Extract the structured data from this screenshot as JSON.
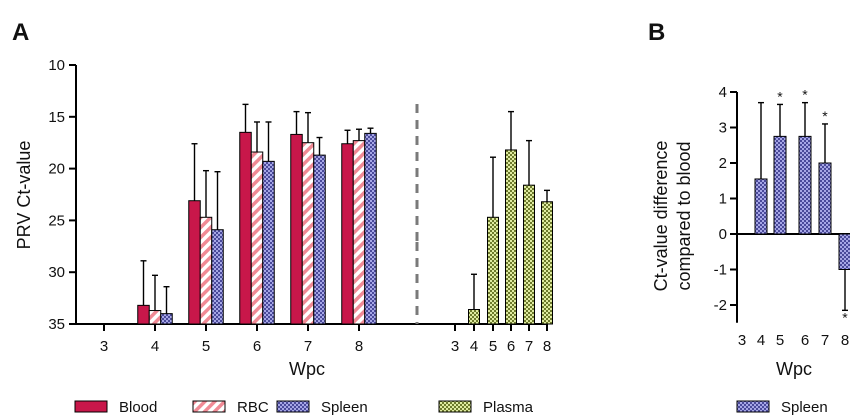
{
  "colors": {
    "blood": "#c8174a",
    "rbc_hatch": "#f08a95",
    "spleen_fill": "#a6a6e6",
    "spleen_check": "#4a4a9a",
    "plasma_fill": "#dfeba0",
    "plasma_check": "#6d7a2c",
    "axis": "#000000",
    "divider": "#7a7a7a"
  },
  "chart_data": [
    {
      "panel": "A",
      "type": "bar",
      "ylabel": "PRV Ct-value",
      "xlabel": "Wpc",
      "ylim": [
        35,
        10
      ],
      "yticks": [
        10,
        15,
        20,
        25,
        30,
        35
      ],
      "y_inverted": true,
      "groups": [
        {
          "label": "3",
          "bars": []
        },
        {
          "label": "4",
          "bars": [
            {
              "series": "Blood",
              "value": 33.2,
              "err": 4.3
            },
            {
              "series": "RBC",
              "value": 33.7,
              "err": 3.4
            },
            {
              "series": "Spleen",
              "value": 34.0,
              "err": 2.6
            }
          ]
        },
        {
          "label": "5",
          "bars": [
            {
              "series": "Blood",
              "value": 23.1,
              "err": 5.5
            },
            {
              "series": "RBC",
              "value": 24.7,
              "err": 4.5
            },
            {
              "series": "Spleen",
              "value": 25.9,
              "err": 5.6
            }
          ]
        },
        {
          "label": "6",
          "bars": [
            {
              "series": "Blood",
              "value": 16.5,
              "err": 2.7
            },
            {
              "series": "RBC",
              "value": 18.4,
              "err": 2.9
            },
            {
              "series": "Spleen",
              "value": 19.3,
              "err": 3.8
            }
          ]
        },
        {
          "label": "7",
          "bars": [
            {
              "series": "Blood",
              "value": 16.7,
              "err": 2.2
            },
            {
              "series": "RBC",
              "value": 17.5,
              "err": 2.9
            },
            {
              "series": "Spleen",
              "value": 18.7,
              "err": 1.7
            }
          ]
        },
        {
          "label": "8",
          "bars": [
            {
              "series": "Blood",
              "value": 17.6,
              "err": 1.3
            },
            {
              "series": "RBC",
              "value": 17.3,
              "err": 1.1
            },
            {
              "series": "Spleen",
              "value": 16.6,
              "err": 0.5
            }
          ]
        }
      ],
      "plasma_group": [
        {
          "label": "3",
          "value": null,
          "err": 0
        },
        {
          "label": "4",
          "value": 33.6,
          "err": 3.4
        },
        {
          "label": "5",
          "value": 24.7,
          "err": 5.8
        },
        {
          "label": "6",
          "value": 18.2,
          "err": 3.7
        },
        {
          "label": "7",
          "value": 21.6,
          "err": 4.3
        },
        {
          "label": "8",
          "value": 23.2,
          "err": 1.1
        }
      ],
      "legend": [
        "Blood",
        "RBC",
        "Spleen",
        "Plasma"
      ]
    },
    {
      "panel": "B",
      "type": "bar",
      "ylabel_lines": [
        "Ct-value difference",
        "compared to blood"
      ],
      "xlabel": "Wpc",
      "ylim": [
        -2.5,
        4
      ],
      "yticks": [
        4,
        3,
        2,
        1,
        0,
        -1,
        -2
      ],
      "ytick_labels": [
        "4",
        "3",
        "2",
        "1",
        "0",
        "-1",
        "-2"
      ],
      "categories": [
        "3",
        "4",
        "5",
        "6",
        "7",
        "8"
      ],
      "series": [
        {
          "name": "Spleen",
          "values": [
            null,
            1.55,
            2.75,
            2.75,
            2.0,
            -1.0
          ],
          "err": [
            0,
            2.15,
            0.9,
            0.95,
            1.1,
            1.15
          ],
          "sig": [
            "",
            "",
            "*",
            "*",
            "*",
            "*"
          ]
        }
      ],
      "legend": [
        "Spleen"
      ]
    }
  ],
  "labels": {
    "panel_a": "A",
    "panel_b": "B"
  }
}
